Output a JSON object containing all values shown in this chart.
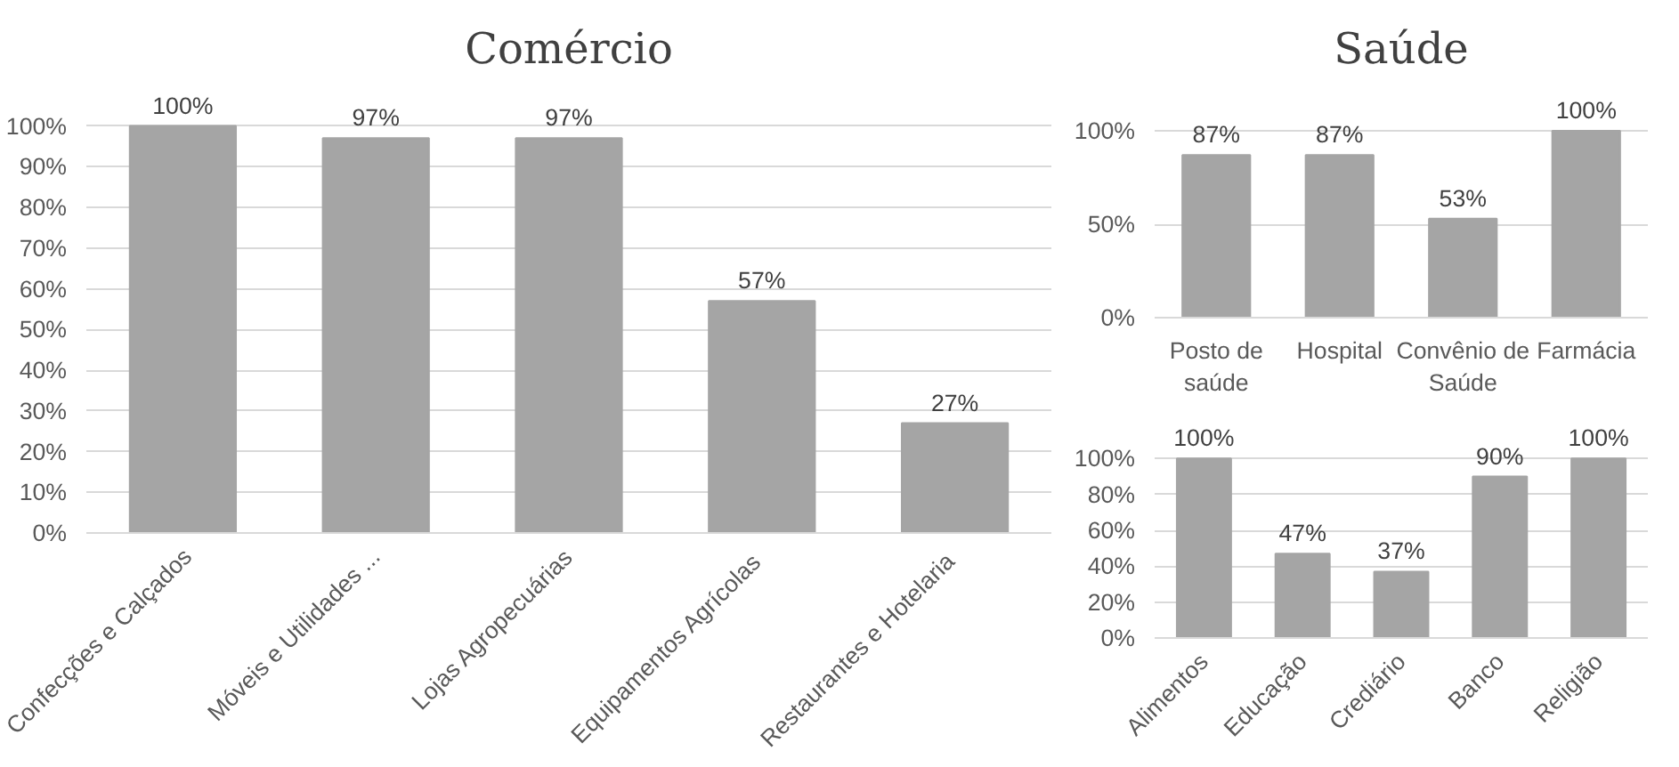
{
  "chart_data": [
    {
      "type": "bar",
      "title": "Comércio",
      "categories": [
        "Confecções e Calçados",
        "Móveis e Utilidades ...",
        "Lojas Agropecuárias",
        "Equipamentos  Agrícolas",
        "Restaurantes  e Hotelaria"
      ],
      "values": [
        100,
        97,
        97,
        57,
        27
      ],
      "value_labels": [
        "100%",
        "97%",
        "97%",
        "57%",
        "27%"
      ],
      "color": "#a5a5a5",
      "ylim": [
        0,
        100
      ],
      "yticks": [
        {
          "value": 0,
          "label": "0%"
        },
        {
          "value": 10,
          "label": "10%"
        },
        {
          "value": 20,
          "label": "20%"
        },
        {
          "value": 30,
          "label": "30%"
        },
        {
          "value": 40,
          "label": "40%"
        },
        {
          "value": 50,
          "label": "50%"
        },
        {
          "value": 60,
          "label": "60%"
        },
        {
          "value": 70,
          "label": "70%"
        },
        {
          "value": 80,
          "label": "80%"
        },
        {
          "value": 90,
          "label": "90%"
        },
        {
          "value": 100,
          "label": "100%"
        }
      ],
      "grid": "y"
    },
    {
      "type": "bar",
      "title": "Saúde",
      "categories": [
        "Posto de saúde",
        "Hospital",
        "Convênio de Saúde",
        "Farmácia"
      ],
      "values": [
        87,
        87,
        53,
        100
      ],
      "value_labels": [
        "87%",
        "87%",
        "53%",
        "100%"
      ],
      "color": "#a5a5a5",
      "ylim": [
        0,
        100
      ],
      "yticks": [
        {
          "value": 0,
          "label": "0%"
        },
        {
          "value": 50,
          "label": "50%"
        },
        {
          "value": 100,
          "label": "100%"
        }
      ],
      "grid": "y"
    },
    {
      "type": "bar",
      "categories": [
        "Alimentos",
        "Educação",
        "Crediário",
        "Banco",
        "Religião"
      ],
      "values": [
        100,
        47,
        37,
        90,
        100
      ],
      "value_labels": [
        "100%",
        "47%",
        "37%",
        "90%",
        "100%"
      ],
      "color": "#a5a5a5",
      "ylim": [
        0,
        100
      ],
      "yticks": [
        {
          "value": 0,
          "label": "0%"
        },
        {
          "value": 20,
          "label": "20%"
        },
        {
          "value": 40,
          "label": "40%"
        },
        {
          "value": 60,
          "label": "60%"
        },
        {
          "value": 80,
          "label": "80%"
        },
        {
          "value": 100,
          "label": "100%"
        }
      ],
      "grid": "y"
    }
  ]
}
